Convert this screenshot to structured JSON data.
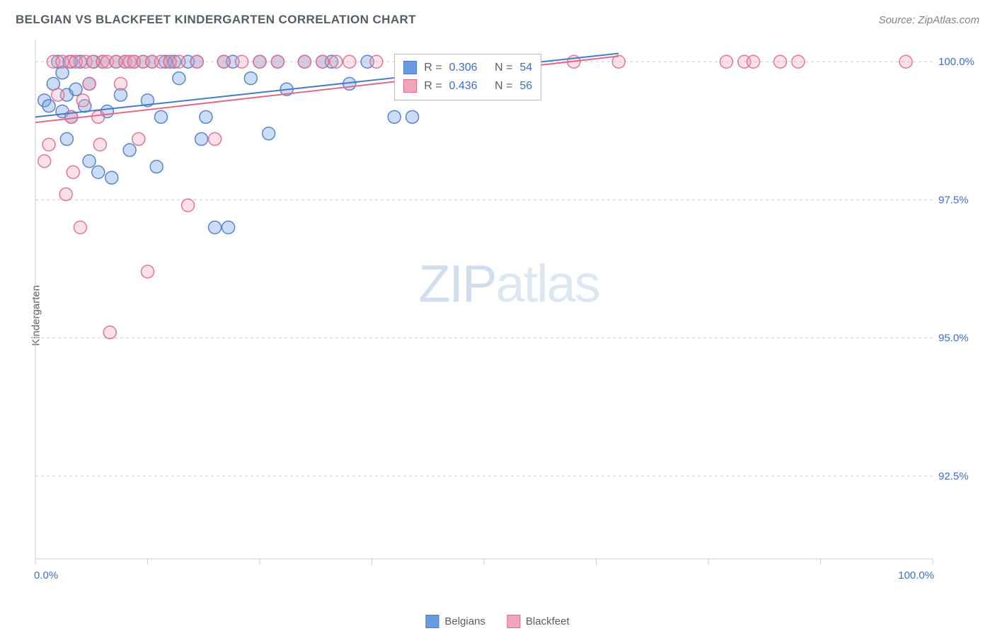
{
  "title": "BELGIAN VS BLACKFEET KINDERGARTEN CORRELATION CHART",
  "source_label": "Source: ZipAtlas.com",
  "ylabel": "Kindergarten",
  "watermark_prefix": "ZIP",
  "watermark_suffix": "atlas",
  "chart": {
    "type": "scatter",
    "background_color": "#ffffff",
    "grid_color": "#c9cfd5",
    "xlim": [
      0,
      100
    ],
    "ylim": [
      91,
      100.4
    ],
    "x_ticks": [
      0,
      12.5,
      25,
      37.5,
      50,
      62.5,
      75,
      87.5,
      100
    ],
    "x_tick_labels_shown": {
      "0": "0.0%",
      "100": "100.0%"
    },
    "y_grid": [
      92.5,
      95.0,
      97.5,
      100.0
    ],
    "y_tick_labels": [
      "92.5%",
      "95.0%",
      "97.5%",
      "100.0%"
    ],
    "trend_lines": [
      {
        "series": "belgians",
        "x0": 0,
        "y0": 99.0,
        "x1": 65,
        "y1": 100.15,
        "color": "#4a7ac7"
      },
      {
        "series": "blackfeet",
        "x0": 0,
        "y0": 98.9,
        "x1": 65,
        "y1": 100.1,
        "color": "#e06a8c"
      }
    ],
    "series": [
      {
        "name": "Belgians",
        "fill": "#6a9ae0",
        "stroke": "#4a7ac7",
        "r_stat": "0.306",
        "n_stat": "54",
        "points": [
          [
            1,
            99.3
          ],
          [
            1.5,
            99.2
          ],
          [
            2,
            99.6
          ],
          [
            2.5,
            100
          ],
          [
            3,
            99.1
          ],
          [
            3,
            99.8
          ],
          [
            3.5,
            98.6
          ],
          [
            3.5,
            99.4
          ],
          [
            4,
            99.0
          ],
          [
            4,
            100
          ],
          [
            4.5,
            99.5
          ],
          [
            5,
            100
          ],
          [
            5.5,
            99.2
          ],
          [
            6,
            98.2
          ],
          [
            6,
            99.6
          ],
          [
            6.5,
            100
          ],
          [
            7,
            98.0
          ],
          [
            7.5,
            100
          ],
          [
            8,
            99.1
          ],
          [
            8.5,
            97.9
          ],
          [
            9,
            100
          ],
          [
            9.5,
            99.4
          ],
          [
            10,
            100
          ],
          [
            10.5,
            98.4
          ],
          [
            11,
            100
          ],
          [
            12,
            100
          ],
          [
            12.5,
            99.3
          ],
          [
            13,
            100
          ],
          [
            13.5,
            98.1
          ],
          [
            14,
            99.0
          ],
          [
            14.5,
            100
          ],
          [
            15,
            100
          ],
          [
            15.5,
            100
          ],
          [
            16,
            99.7
          ],
          [
            17,
            100
          ],
          [
            18,
            100
          ],
          [
            18.5,
            98.6
          ],
          [
            19,
            99.0
          ],
          [
            20,
            97.0
          ],
          [
            21,
            100
          ],
          [
            21.5,
            97.0
          ],
          [
            22,
            100
          ],
          [
            24,
            99.7
          ],
          [
            25,
            100
          ],
          [
            26,
            98.7
          ],
          [
            27,
            100
          ],
          [
            28,
            99.5
          ],
          [
            30,
            100
          ],
          [
            32,
            100
          ],
          [
            33,
            100
          ],
          [
            35,
            99.6
          ],
          [
            37,
            100
          ],
          [
            40,
            99.0
          ],
          [
            42,
            99.0
          ]
        ]
      },
      {
        "name": "Blackfeet",
        "fill": "#f0a6ba",
        "stroke": "#e06a8c",
        "r_stat": "0.436",
        "n_stat": "56",
        "points": [
          [
            1,
            98.2
          ],
          [
            1.5,
            98.5
          ],
          [
            2,
            100
          ],
          [
            2.5,
            99.4
          ],
          [
            3,
            100
          ],
          [
            3.4,
            97.6
          ],
          [
            3.8,
            100
          ],
          [
            4,
            99.0
          ],
          [
            4.2,
            98.0
          ],
          [
            4.5,
            100
          ],
          [
            5,
            97.0
          ],
          [
            5.3,
            99.3
          ],
          [
            5.6,
            100
          ],
          [
            6,
            99.6
          ],
          [
            6.4,
            100
          ],
          [
            7,
            99.0
          ],
          [
            7.2,
            98.5
          ],
          [
            7.5,
            100
          ],
          [
            8,
            100
          ],
          [
            8.3,
            95.1
          ],
          [
            9,
            100
          ],
          [
            9.5,
            99.6
          ],
          [
            10,
            100
          ],
          [
            10.5,
            100
          ],
          [
            11,
            100
          ],
          [
            11.5,
            98.6
          ],
          [
            12,
            100
          ],
          [
            12.5,
            96.2
          ],
          [
            13,
            100
          ],
          [
            14,
            100
          ],
          [
            15,
            100
          ],
          [
            16,
            100
          ],
          [
            17,
            97.4
          ],
          [
            18,
            100
          ],
          [
            20,
            98.6
          ],
          [
            21,
            100
          ],
          [
            23,
            100
          ],
          [
            25,
            100
          ],
          [
            27,
            100
          ],
          [
            30,
            100
          ],
          [
            32,
            100
          ],
          [
            33.5,
            100
          ],
          [
            35,
            100
          ],
          [
            38,
            100
          ],
          [
            42,
            100
          ],
          [
            46,
            100
          ],
          [
            50,
            100
          ],
          [
            55,
            100
          ],
          [
            60,
            100
          ],
          [
            65,
            100
          ],
          [
            77,
            100
          ],
          [
            79,
            100
          ],
          [
            80,
            100
          ],
          [
            83,
            100
          ],
          [
            85,
            100
          ],
          [
            97,
            100
          ]
        ]
      }
    ]
  },
  "stats_box": {
    "prefix_r": "R =",
    "prefix_n": "N ="
  },
  "legend": {
    "label_a": "Belgians",
    "label_b": "Blackfeet"
  }
}
